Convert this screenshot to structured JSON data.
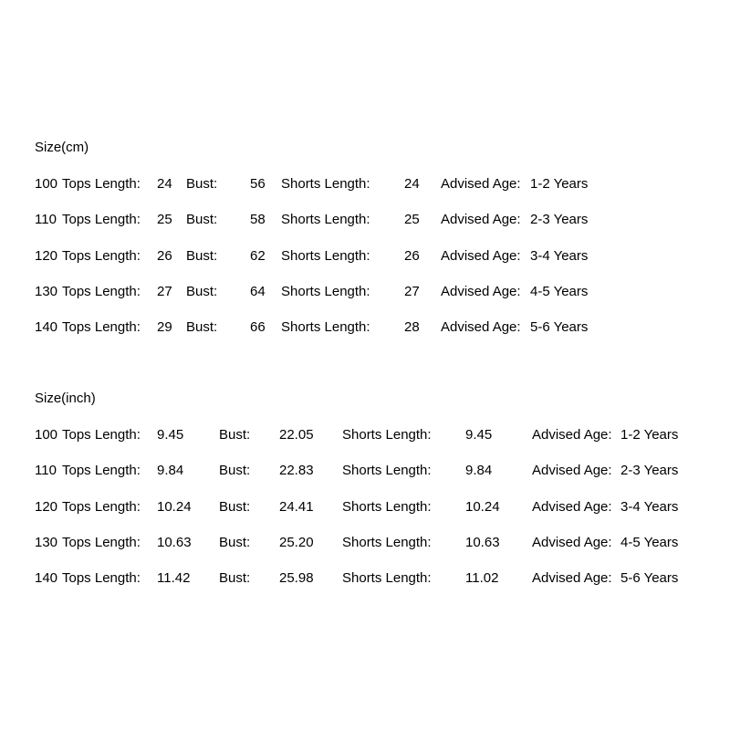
{
  "page": {
    "background": "#ffffff",
    "text_color": "#000000"
  },
  "size_chart": {
    "cm": {
      "title": "Size(cm)",
      "rows": [
        {
          "size": "100",
          "tops_label": "Tops Length:",
          "tops_value": "24",
          "bust_label": "Bust:",
          "bust_value": "56",
          "shorts_label": "Shorts Length:",
          "shorts_value": "24",
          "age_label": "Advised Age:",
          "age_value": "1-2 Years"
        },
        {
          "size": "110",
          "tops_label": "Tops Length:",
          "tops_value": "25",
          "bust_label": "Bust:",
          "bust_value": "58",
          "shorts_label": "Shorts Length:",
          "shorts_value": "25",
          "age_label": "Advised Age:",
          "age_value": "2-3 Years"
        },
        {
          "size": "120",
          "tops_label": "Tops Length:",
          "tops_value": "26",
          "bust_label": "Bust:",
          "bust_value": "62",
          "shorts_label": "Shorts Length:",
          "shorts_value": "26",
          "age_label": "Advised Age:",
          "age_value": "3-4 Years"
        },
        {
          "size": "130",
          "tops_label": "Tops Length:",
          "tops_value": "27",
          "bust_label": "Bust:",
          "bust_value": "64",
          "shorts_label": "Shorts Length:",
          "shorts_value": "27",
          "age_label": "Advised Age:",
          "age_value": "4-5 Years"
        },
        {
          "size": "140",
          "tops_label": "Tops Length:",
          "tops_value": "29",
          "bust_label": "Bust:",
          "bust_value": "66",
          "shorts_label": "Shorts Length:",
          "shorts_value": "28",
          "age_label": "Advised Age:",
          "age_value": "5-6 Years"
        }
      ]
    },
    "inch": {
      "title": "Size(inch)",
      "rows": [
        {
          "size": "100",
          "tops_label": "Tops Length:",
          "tops_value": "9.45",
          "bust_label": "Bust:",
          "bust_value": "22.05",
          "shorts_label": "Shorts Length:",
          "shorts_value": "9.45",
          "age_label": "Advised Age:",
          "age_value": "1-2 Years"
        },
        {
          "size": "110",
          "tops_label": "Tops Length:",
          "tops_value": "9.84",
          "bust_label": "Bust:",
          "bust_value": "22.83",
          "shorts_label": "Shorts Length:",
          "shorts_value": "9.84",
          "age_label": "Advised Age:",
          "age_value": "2-3 Years"
        },
        {
          "size": "120",
          "tops_label": "Tops Length:",
          "tops_value": "10.24",
          "bust_label": "Bust:",
          "bust_value": "24.41",
          "shorts_label": "Shorts Length:",
          "shorts_value": "10.24",
          "age_label": "Advised Age:",
          "age_value": "3-4 Years"
        },
        {
          "size": "130",
          "tops_label": "Tops Length:",
          "tops_value": "10.63",
          "bust_label": "Bust:",
          "bust_value": "25.20",
          "shorts_label": "Shorts Length:",
          "shorts_value": "10.63",
          "age_label": "Advised Age:",
          "age_value": "4-5 Years"
        },
        {
          "size": "140",
          "tops_label": "Tops Length:",
          "tops_value": "11.42",
          "bust_label": "Bust:",
          "bust_value": "25.98",
          "shorts_label": "Shorts Length:",
          "shorts_value": "11.02",
          "age_label": "Advised Age:",
          "age_value": "5-6 Years"
        }
      ]
    }
  }
}
